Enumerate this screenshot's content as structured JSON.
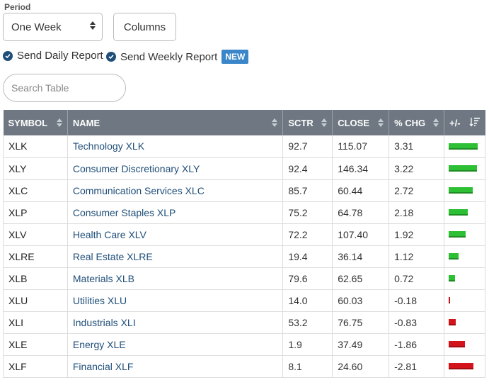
{
  "period": {
    "label": "Period",
    "value": "One Week"
  },
  "columns_button": "Columns",
  "options": {
    "daily": "Send Daily Report",
    "weekly": "Send Weekly Report",
    "new_badge": "NEW"
  },
  "search": {
    "placeholder": "Search Table"
  },
  "table": {
    "headers": [
      "SYMBOL",
      "NAME",
      "SCTR",
      "CLOSE",
      "% CHG",
      "+/-"
    ],
    "rows": [
      {
        "symbol": "XLK",
        "name": "Technology XLK",
        "sctr": "92.7",
        "close": "115.07",
        "chg": "3.31",
        "chg_value": 3.31
      },
      {
        "symbol": "XLY",
        "name": "Consumer Discretionary XLY",
        "sctr": "92.4",
        "close": "146.34",
        "chg": "3.22",
        "chg_value": 3.22
      },
      {
        "symbol": "XLC",
        "name": "Communication Services XLC",
        "sctr": "85.7",
        "close": "60.44",
        "chg": "2.72",
        "chg_value": 2.72
      },
      {
        "symbol": "XLP",
        "name": "Consumer Staples XLP",
        "sctr": "75.2",
        "close": "64.78",
        "chg": "2.18",
        "chg_value": 2.18
      },
      {
        "symbol": "XLV",
        "name": "Health Care XLV",
        "sctr": "72.2",
        "close": "107.40",
        "chg": "1.92",
        "chg_value": 1.92
      },
      {
        "symbol": "XLRE",
        "name": "Real Estate XLRE",
        "sctr": "19.4",
        "close": "36.14",
        "chg": "1.12",
        "chg_value": 1.12
      },
      {
        "symbol": "XLB",
        "name": "Materials XLB",
        "sctr": "79.6",
        "close": "62.65",
        "chg": "0.72",
        "chg_value": 0.72
      },
      {
        "symbol": "XLU",
        "name": "Utilities XLU",
        "sctr": "14.0",
        "close": "60.03",
        "chg": "-0.18",
        "chg_value": -0.18
      },
      {
        "symbol": "XLI",
        "name": "Industrials XLI",
        "sctr": "53.2",
        "close": "76.75",
        "chg": "-0.83",
        "chg_value": -0.83
      },
      {
        "symbol": "XLE",
        "name": "Energy XLE",
        "sctr": "1.9",
        "close": "37.49",
        "chg": "-1.86",
        "chg_value": -1.86
      },
      {
        "symbol": "XLF",
        "name": "Financial XLF",
        "sctr": "8.1",
        "close": "24.60",
        "chg": "-2.81",
        "chg_value": -2.81
      }
    ]
  },
  "colors": {
    "header_bg": "#6f7882",
    "link": "#1f4e79",
    "positive": "#2ec034",
    "negative": "#d4141b",
    "badge": "#3a86c8"
  }
}
